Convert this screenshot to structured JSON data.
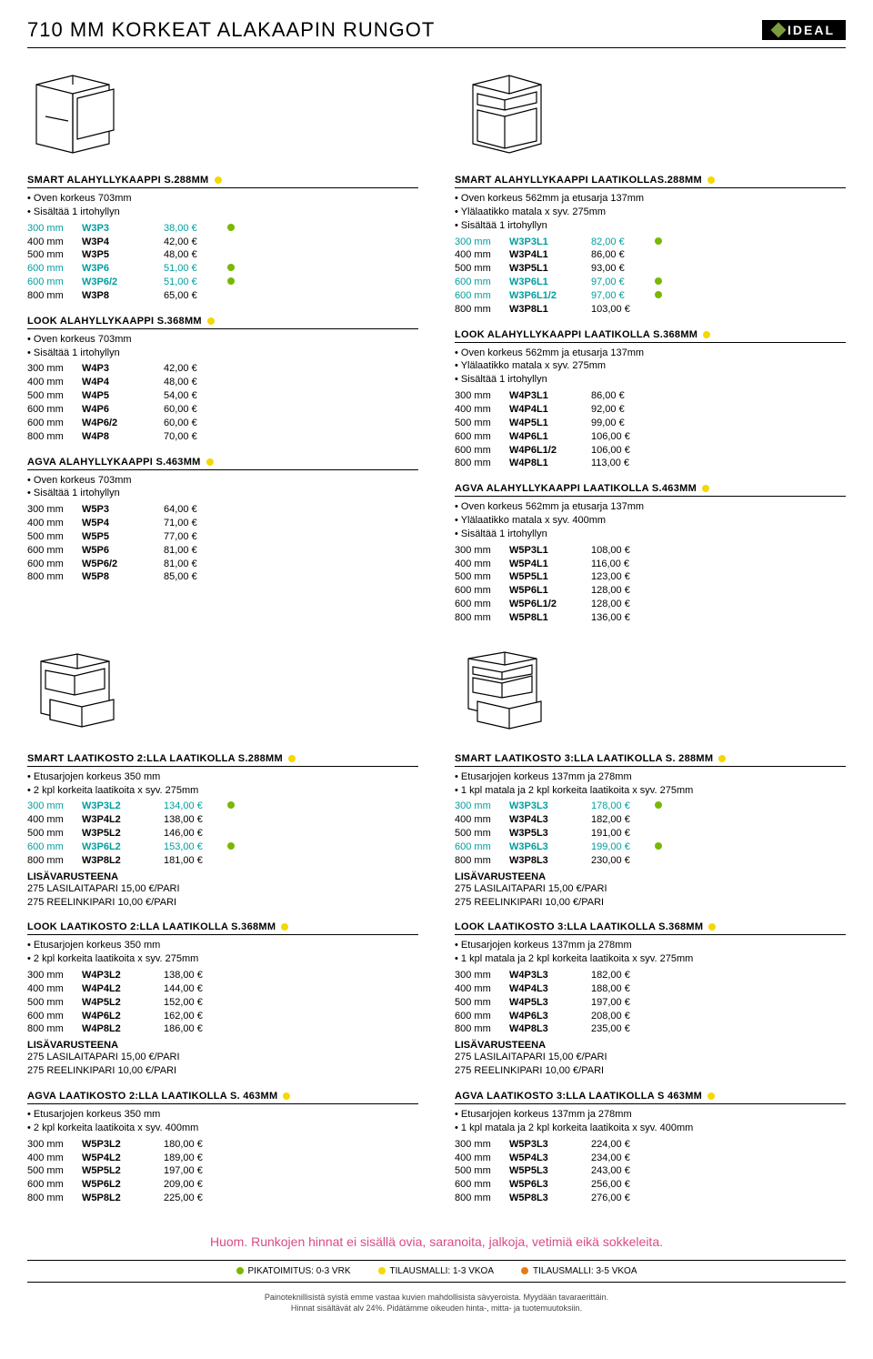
{
  "header": {
    "title": "710 MM KORKEAT ALAKAAPIN RUNGOT",
    "brand": "IDEAL"
  },
  "legend": {
    "green": "PIKATOIMITUS: 0-3 VRK",
    "yellow": "TILAUSMALLI: 1-3 VKOA",
    "orange": "TILAUSMALLI: 3-5 VKOA"
  },
  "notice": "Huom. Runkojen hinnat ei sisällä ovia, saranoita, jalkoja, vetimiä eikä sokkeleita.",
  "footer": {
    "l1": "Painoteknillisistä syistä emme vastaa kuvien mahdollisista sävyeroista. Myydään tavaraerittäin.",
    "l2": "Hinnat sisältävät alv 24%. Pidätämme oikeuden hinta-, mitta- ja tuotemuutoksiin."
  },
  "lisavar": {
    "title": "LISÄVARUSTEENA",
    "l1": "275 LASILAITAPARI 15,00 €/PARI",
    "l2": "275 REELINKIPARI   10,00 €/PARI"
  },
  "p": {
    "smart288": {
      "title": "SMART ALAHYLLYKAAPPI S.288MM",
      "dot": "yellow",
      "bullets": [
        "Oven korkeus 703mm",
        "Sisältää 1 irtohyllyn"
      ],
      "rows": [
        {
          "size": "300 mm",
          "code": "W3P3",
          "price": "38,00 €",
          "teal": true,
          "dot": "green"
        },
        {
          "size": "400 mm",
          "code": "W3P4",
          "price": "42,00 €"
        },
        {
          "size": "500 mm",
          "code": "W3P5",
          "price": "48,00 €"
        },
        {
          "size": "600 mm",
          "code": "W3P6",
          "price": "51,00 €",
          "teal": true,
          "dot": "green"
        },
        {
          "size": "600 mm",
          "code": "W3P6/2",
          "price": "51,00 €",
          "teal": true,
          "dot": "green"
        },
        {
          "size": "800 mm",
          "code": "W3P8",
          "price": "65,00 €"
        }
      ]
    },
    "look368": {
      "title": "LOOK ALAHYLLYKAAPPI S.368MM",
      "dot": "yellow",
      "bullets": [
        "Oven korkeus 703mm",
        "Sisältää 1 irtohyllyn"
      ],
      "rows": [
        {
          "size": "300 mm",
          "code": "W4P3",
          "price": "42,00 €"
        },
        {
          "size": "400 mm",
          "code": "W4P4",
          "price": "48,00 €"
        },
        {
          "size": "500 mm",
          "code": "W4P5",
          "price": "54,00 €"
        },
        {
          "size": "600 mm",
          "code": "W4P6",
          "price": "60,00 €"
        },
        {
          "size": "600 mm",
          "code": "W4P6/2",
          "price": "60,00 €"
        },
        {
          "size": "800 mm",
          "code": "W4P8",
          "price": "70,00 €"
        }
      ]
    },
    "agva463": {
      "title": "AGVA ALAHYLLYKAAPPI S.463MM",
      "dot": "yellow",
      "bullets": [
        "Oven korkeus 703mm",
        "Sisältää 1 irtohyllyn"
      ],
      "rows": [
        {
          "size": "300 mm",
          "code": "W5P3",
          "price": "64,00 €"
        },
        {
          "size": "400 mm",
          "code": "W5P4",
          "price": "71,00 €"
        },
        {
          "size": "500 mm",
          "code": "W5P5",
          "price": "77,00 €"
        },
        {
          "size": "600 mm",
          "code": "W5P6",
          "price": "81,00 €"
        },
        {
          "size": "600 mm",
          "code": "W5P6/2",
          "price": "81,00 €"
        },
        {
          "size": "800 mm",
          "code": "W5P8",
          "price": "85,00 €"
        }
      ]
    },
    "smartL288": {
      "title": "SMART ALAHYLLYKAAPPI LAATIKOLLAS.288MM",
      "dot": "yellow",
      "bullets": [
        "Oven korkeus 562mm ja etusarja 137mm",
        "Ylälaatikko matala x syv. 275mm",
        "Sisältää 1 irtohyllyn"
      ],
      "rows": [
        {
          "size": "300 mm",
          "code": "W3P3L1",
          "price": "82,00 €",
          "teal": true,
          "dot": "green"
        },
        {
          "size": "400 mm",
          "code": "W3P4L1",
          "price": "86,00 €"
        },
        {
          "size": "500 mm",
          "code": "W3P5L1",
          "price": "93,00 €"
        },
        {
          "size": "600 mm",
          "code": "W3P6L1",
          "price": "97,00 €",
          "teal": true,
          "dot": "green"
        },
        {
          "size": "600 mm",
          "code": "W3P6L1/2",
          "price": "97,00 €",
          "teal": true,
          "dot": "green"
        },
        {
          "size": "800 mm",
          "code": "W3P8L1",
          "price": "103,00 €"
        }
      ]
    },
    "lookL368": {
      "title": "LOOK ALAHYLLYKAAPPI LAATIKOLLA S.368MM",
      "dot": "yellow",
      "bullets": [
        "Oven korkeus 562mm ja etusarja 137mm",
        "Ylälaatikko matala x syv. 275mm",
        "Sisältää 1 irtohyllyn"
      ],
      "rows": [
        {
          "size": "300 mm",
          "code": "W4P3L1",
          "price": "86,00 €"
        },
        {
          "size": "400 mm",
          "code": "W4P4L1",
          "price": "92,00 €"
        },
        {
          "size": "500 mm",
          "code": "W4P5L1",
          "price": "99,00 €"
        },
        {
          "size": "600 mm",
          "code": "W4P6L1",
          "price": "106,00 €"
        },
        {
          "size": "600 mm",
          "code": "W4P6L1/2",
          "price": "106,00 €"
        },
        {
          "size": "800 mm",
          "code": "W4P8L1",
          "price": "113,00 €"
        }
      ]
    },
    "agvaL463": {
      "title": "AGVA ALAHYLLYKAAPPI LAATIKOLLA S.463MM",
      "dot": "yellow",
      "bullets": [
        "Oven korkeus 562mm ja etusarja 137mm",
        "Ylälaatikko matala x syv. 400mm",
        "Sisältää 1 irtohyllyn"
      ],
      "rows": [
        {
          "size": "300 mm",
          "code": "W5P3L1",
          "price": "108,00 €"
        },
        {
          "size": "400 mm",
          "code": "W5P4L1",
          "price": "116,00 €"
        },
        {
          "size": "500 mm",
          "code": "W5P5L1",
          "price": "123,00 €"
        },
        {
          "size": "600 mm",
          "code": "W5P6L1",
          "price": "128,00 €"
        },
        {
          "size": "600 mm",
          "code": "W5P6L1/2",
          "price": "128,00 €"
        },
        {
          "size": "800 mm",
          "code": "W5P8L1",
          "price": "136,00 €"
        }
      ]
    },
    "smart2L288": {
      "title": "SMART LAATIKOSTO 2:LLA LAATIKOLLA S.288MM",
      "dot": "yellow",
      "bullets": [
        "Etusarjojen korkeus 350 mm",
        "2 kpl korkeita laatikoita x syv. 275mm"
      ],
      "rows": [
        {
          "size": "300 mm",
          "code": "W3P3L2",
          "price": "134,00 €",
          "teal": true,
          "dot": "green"
        },
        {
          "size": "400 mm",
          "code": "W3P4L2",
          "price": "138,00 €"
        },
        {
          "size": "500 mm",
          "code": "W3P5L2",
          "price": "146,00 €"
        },
        {
          "size": "600 mm",
          "code": "W3P6L2",
          "price": "153,00 €",
          "teal": true,
          "dot": "green"
        },
        {
          "size": "800 mm",
          "code": "W3P8L2",
          "price": "181,00 €"
        }
      ],
      "extras": true
    },
    "look2L368": {
      "title": "LOOK LAATIKOSTO 2:LLA LAATIKOLLA S.368MM",
      "dot": "yellow",
      "bullets": [
        "Etusarjojen korkeus 350 mm",
        "2 kpl korkeita laatikoita x syv. 275mm"
      ],
      "rows": [
        {
          "size": "300 mm",
          "code": "W4P3L2",
          "price": "138,00 €"
        },
        {
          "size": "400 mm",
          "code": "W4P4L2",
          "price": "144,00 €"
        },
        {
          "size": "500 mm",
          "code": "W4P5L2",
          "price": "152,00 €"
        },
        {
          "size": "600 mm",
          "code": "W4P6L2",
          "price": "162,00 €"
        },
        {
          "size": "800 mm",
          "code": "W4P8L2",
          "price": "186,00 €"
        }
      ],
      "extras": true
    },
    "agva2L463": {
      "title": "AGVA LAATIKOSTO 2:LLA LAATIKOLLA S. 463MM",
      "dot": "yellow",
      "bullets": [
        "Etusarjojen korkeus 350 mm",
        "2 kpl korkeita laatikoita x syv. 400mm"
      ],
      "rows": [
        {
          "size": "300 mm",
          "code": "W5P3L2",
          "price": "180,00 €"
        },
        {
          "size": "400 mm",
          "code": "W5P4L2",
          "price": "189,00 €"
        },
        {
          "size": "500 mm",
          "code": "W5P5L2",
          "price": "197,00 €"
        },
        {
          "size": "600 mm",
          "code": "W5P6L2",
          "price": "209,00 €"
        },
        {
          "size": "800 mm",
          "code": "W5P8L2",
          "price": "225,00 €"
        }
      ]
    },
    "smart3L288": {
      "title": "SMART LAATIKOSTO 3:LLA LAATIKOLLA S. 288MM",
      "dot": "yellow",
      "bullets": [
        "Etusarjojen korkeus 137mm ja 278mm",
        "1 kpl matala ja 2 kpl korkeita laatikoita x syv. 275mm"
      ],
      "rows": [
        {
          "size": "300 mm",
          "code": "W3P3L3",
          "price": "178,00 €",
          "teal": true,
          "dot": "green"
        },
        {
          "size": "400 mm",
          "code": "W3P4L3",
          "price": "182,00 €"
        },
        {
          "size": "500 mm",
          "code": "W3P5L3",
          "price": "191,00 €"
        },
        {
          "size": "600 mm",
          "code": "W3P6L3",
          "price": "199,00 €",
          "teal": true,
          "dot": "green"
        },
        {
          "size": "800 mm",
          "code": "W3P8L3",
          "price": "230,00 €"
        }
      ],
      "extras": true
    },
    "look3L368": {
      "title": "LOOK LAATIKOSTO 3:LLA LAATIKOLLA S.368MM",
      "dot": "yellow",
      "bullets": [
        "Etusarjojen korkeus 137mm ja 278mm",
        "1 kpl matala ja 2 kpl korkeita laatikoita x syv. 275mm"
      ],
      "rows": [
        {
          "size": "300 mm",
          "code": "W4P3L3",
          "price": "182,00 €"
        },
        {
          "size": "400 mm",
          "code": "W4P4L3",
          "price": "188,00 €"
        },
        {
          "size": "500 mm",
          "code": "W4P5L3",
          "price": "197,00 €"
        },
        {
          "size": "600 mm",
          "code": "W4P6L3",
          "price": "208,00 €"
        },
        {
          "size": "800 mm",
          "code": "W4P8L3",
          "price": "235,00 €"
        }
      ],
      "extras": true
    },
    "agva3L463": {
      "title": "AGVA LAATIKOSTO 3:LLA LAATIKOLLA S 463MM",
      "dot": "yellow",
      "bullets": [
        "Etusarjojen korkeus 137mm ja 278mm",
        "1 kpl matala ja 2 kpl korkeita laatikoita x syv. 400mm"
      ],
      "rows": [
        {
          "size": "300 mm",
          "code": "W5P3L3",
          "price": "224,00 €"
        },
        {
          "size": "400 mm",
          "code": "W5P4L3",
          "price": "234,00 €"
        },
        {
          "size": "500 mm",
          "code": "W5P5L3",
          "price": "243,00 €"
        },
        {
          "size": "600 mm",
          "code": "W5P6L3",
          "price": "256,00 €"
        },
        {
          "size": "800 mm",
          "code": "W5P8L3",
          "price": "276,00 €"
        }
      ]
    }
  }
}
